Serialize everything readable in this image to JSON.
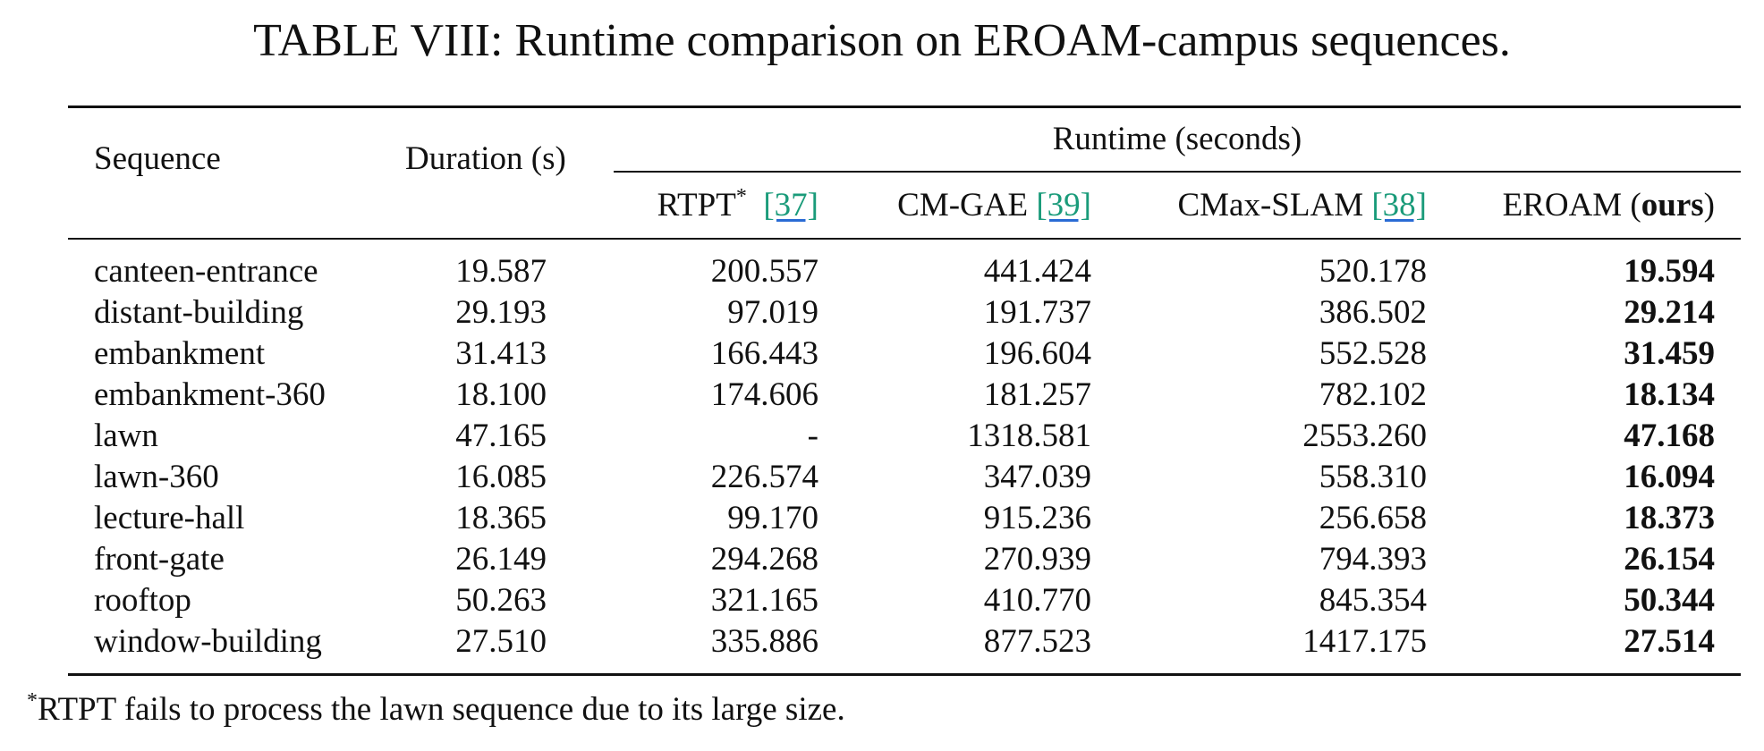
{
  "caption": "TABLE VIII: Runtime comparison on EROAM-campus sequences.",
  "header": {
    "sequence": "Sequence",
    "duration": "Duration (s)",
    "runtime_group": "Runtime (seconds)",
    "methods": [
      {
        "name": "RTPT",
        "marker": "*",
        "cite": "[37]",
        "suffix_open": "",
        "suffix_bold": "",
        "suffix_close": ""
      },
      {
        "name": "CM-GAE",
        "marker": "",
        "cite": "[39]"
      },
      {
        "name": "CMax-SLAM",
        "marker": "",
        "cite": "[38]"
      },
      {
        "name": "EROAM (",
        "bold_part": "ours",
        "close": ")"
      }
    ]
  },
  "rows": [
    {
      "sequence": "canteen-entrance",
      "duration": "19.587",
      "rtpt": "200.557",
      "cmgae": "441.424",
      "cmax": "520.178",
      "eroam": "19.594"
    },
    {
      "sequence": "distant-building",
      "duration": "29.193",
      "rtpt": "97.019",
      "cmgae": "191.737",
      "cmax": "386.502",
      "eroam": "29.214"
    },
    {
      "sequence": "embankment",
      "duration": "31.413",
      "rtpt": "166.443",
      "cmgae": "196.604",
      "cmax": "552.528",
      "eroam": "31.459"
    },
    {
      "sequence": "embankment-360",
      "duration": "18.100",
      "rtpt": "174.606",
      "cmgae": "181.257",
      "cmax": "782.102",
      "eroam": "18.134"
    },
    {
      "sequence": "lawn",
      "duration": "47.165",
      "rtpt": "-",
      "cmgae": "1318.581",
      "cmax": "2553.260",
      "eroam": "47.168"
    },
    {
      "sequence": "lawn-360",
      "duration": "16.085",
      "rtpt": "226.574",
      "cmgae": "347.039",
      "cmax": "558.310",
      "eroam": "16.094"
    },
    {
      "sequence": "lecture-hall",
      "duration": "18.365",
      "rtpt": "99.170",
      "cmgae": "915.236",
      "cmax": "256.658",
      "eroam": "18.373"
    },
    {
      "sequence": "front-gate",
      "duration": "26.149",
      "rtpt": "294.268",
      "cmgae": "270.939",
      "cmax": "794.393",
      "eroam": "26.154"
    },
    {
      "sequence": "rooftop",
      "duration": "50.263",
      "rtpt": "321.165",
      "cmgae": "410.770",
      "cmax": "845.354",
      "eroam": "50.344"
    },
    {
      "sequence": "window-building",
      "duration": "27.510",
      "rtpt": "335.886",
      "cmgae": "877.523",
      "cmax": "1417.175",
      "eroam": "27.514"
    }
  ],
  "footnote": {
    "marker": "*",
    "text": "RTPT fails to process the lawn sequence due to its large size."
  }
}
